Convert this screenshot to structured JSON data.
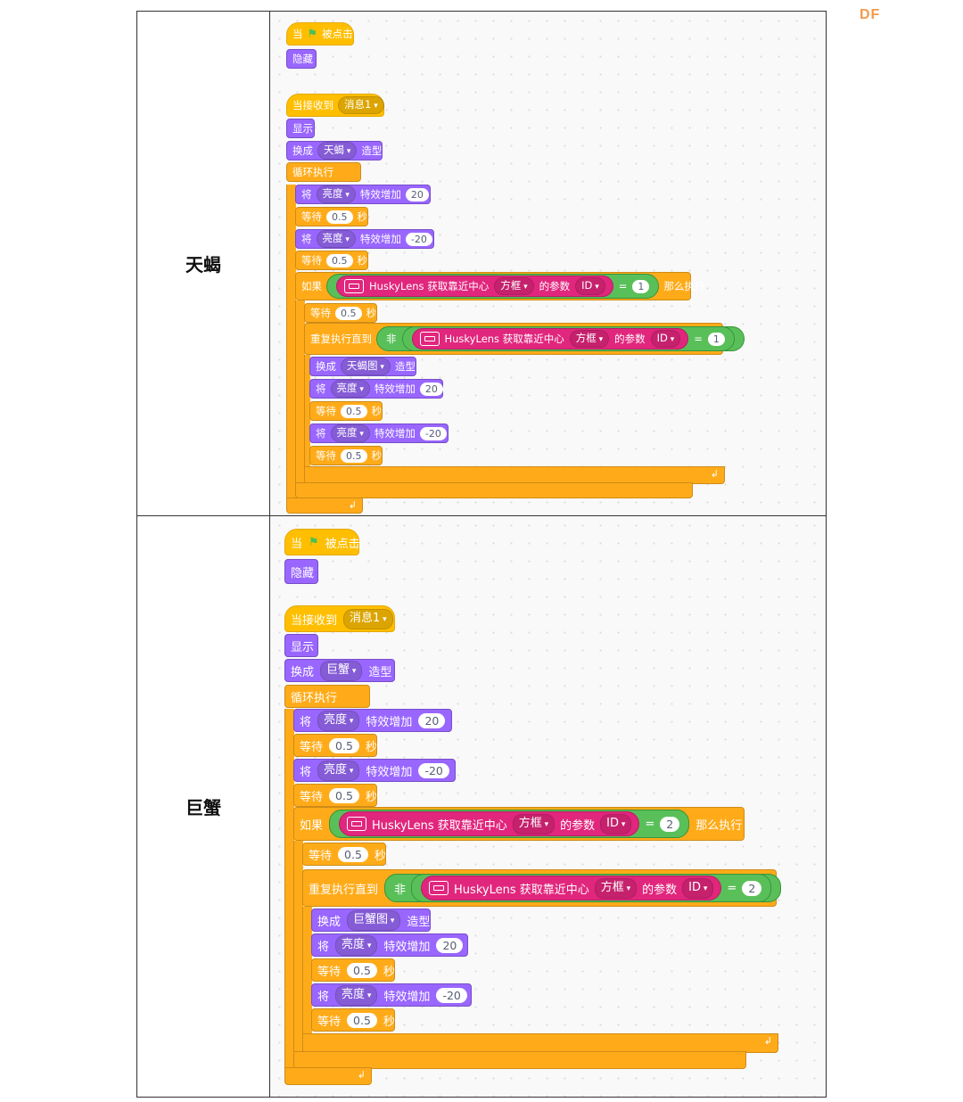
{
  "watermark": "DF",
  "rows": [
    {
      "label": "天蝎",
      "ui": {
        "when": "当",
        "clicked": "被点击",
        "hide": "隐藏",
        "when_receive": "当接收到",
        "message": "消息1",
        "show": "显示",
        "switch": "换成",
        "costume": "天蝎",
        "costume_suffix": "造型",
        "forever": "循环执行",
        "set": "将",
        "effect": "亮度",
        "change_by": "特效增加",
        "plus": "20",
        "minus": "-20",
        "wait": "等待",
        "secs_val": "0.5",
        "secs": "秒",
        "if": "如果",
        "then": "那么执行",
        "husky": "HuskyLens 获取靠近中心",
        "box": "方框",
        "param": "的参数",
        "id": "ID",
        "eq": "=",
        "id_val": "1",
        "repeat_until": "重复执行直到",
        "not": "非",
        "costume2": "天蝎图"
      }
    },
    {
      "label": "巨蟹",
      "ui": {
        "when": "当",
        "clicked": "被点击",
        "hide": "隐藏",
        "when_receive": "当接收到",
        "message": "消息1",
        "show": "显示",
        "switch": "换成",
        "costume": "巨蟹",
        "costume_suffix": "造型",
        "forever": "循环执行",
        "set": "将",
        "effect": "亮度",
        "change_by": "特效增加",
        "plus": "20",
        "minus": "-20",
        "wait": "等待",
        "secs_val": "0.5",
        "secs": "秒",
        "if": "如果",
        "then": "那么执行",
        "husky": "HuskyLens 获取靠近中心",
        "box": "方框",
        "param": "的参数",
        "id": "ID",
        "eq": "=",
        "id_val": "2",
        "repeat_until": "重复执行直到",
        "not": "非",
        "costume2": "巨蟹图"
      }
    }
  ]
}
